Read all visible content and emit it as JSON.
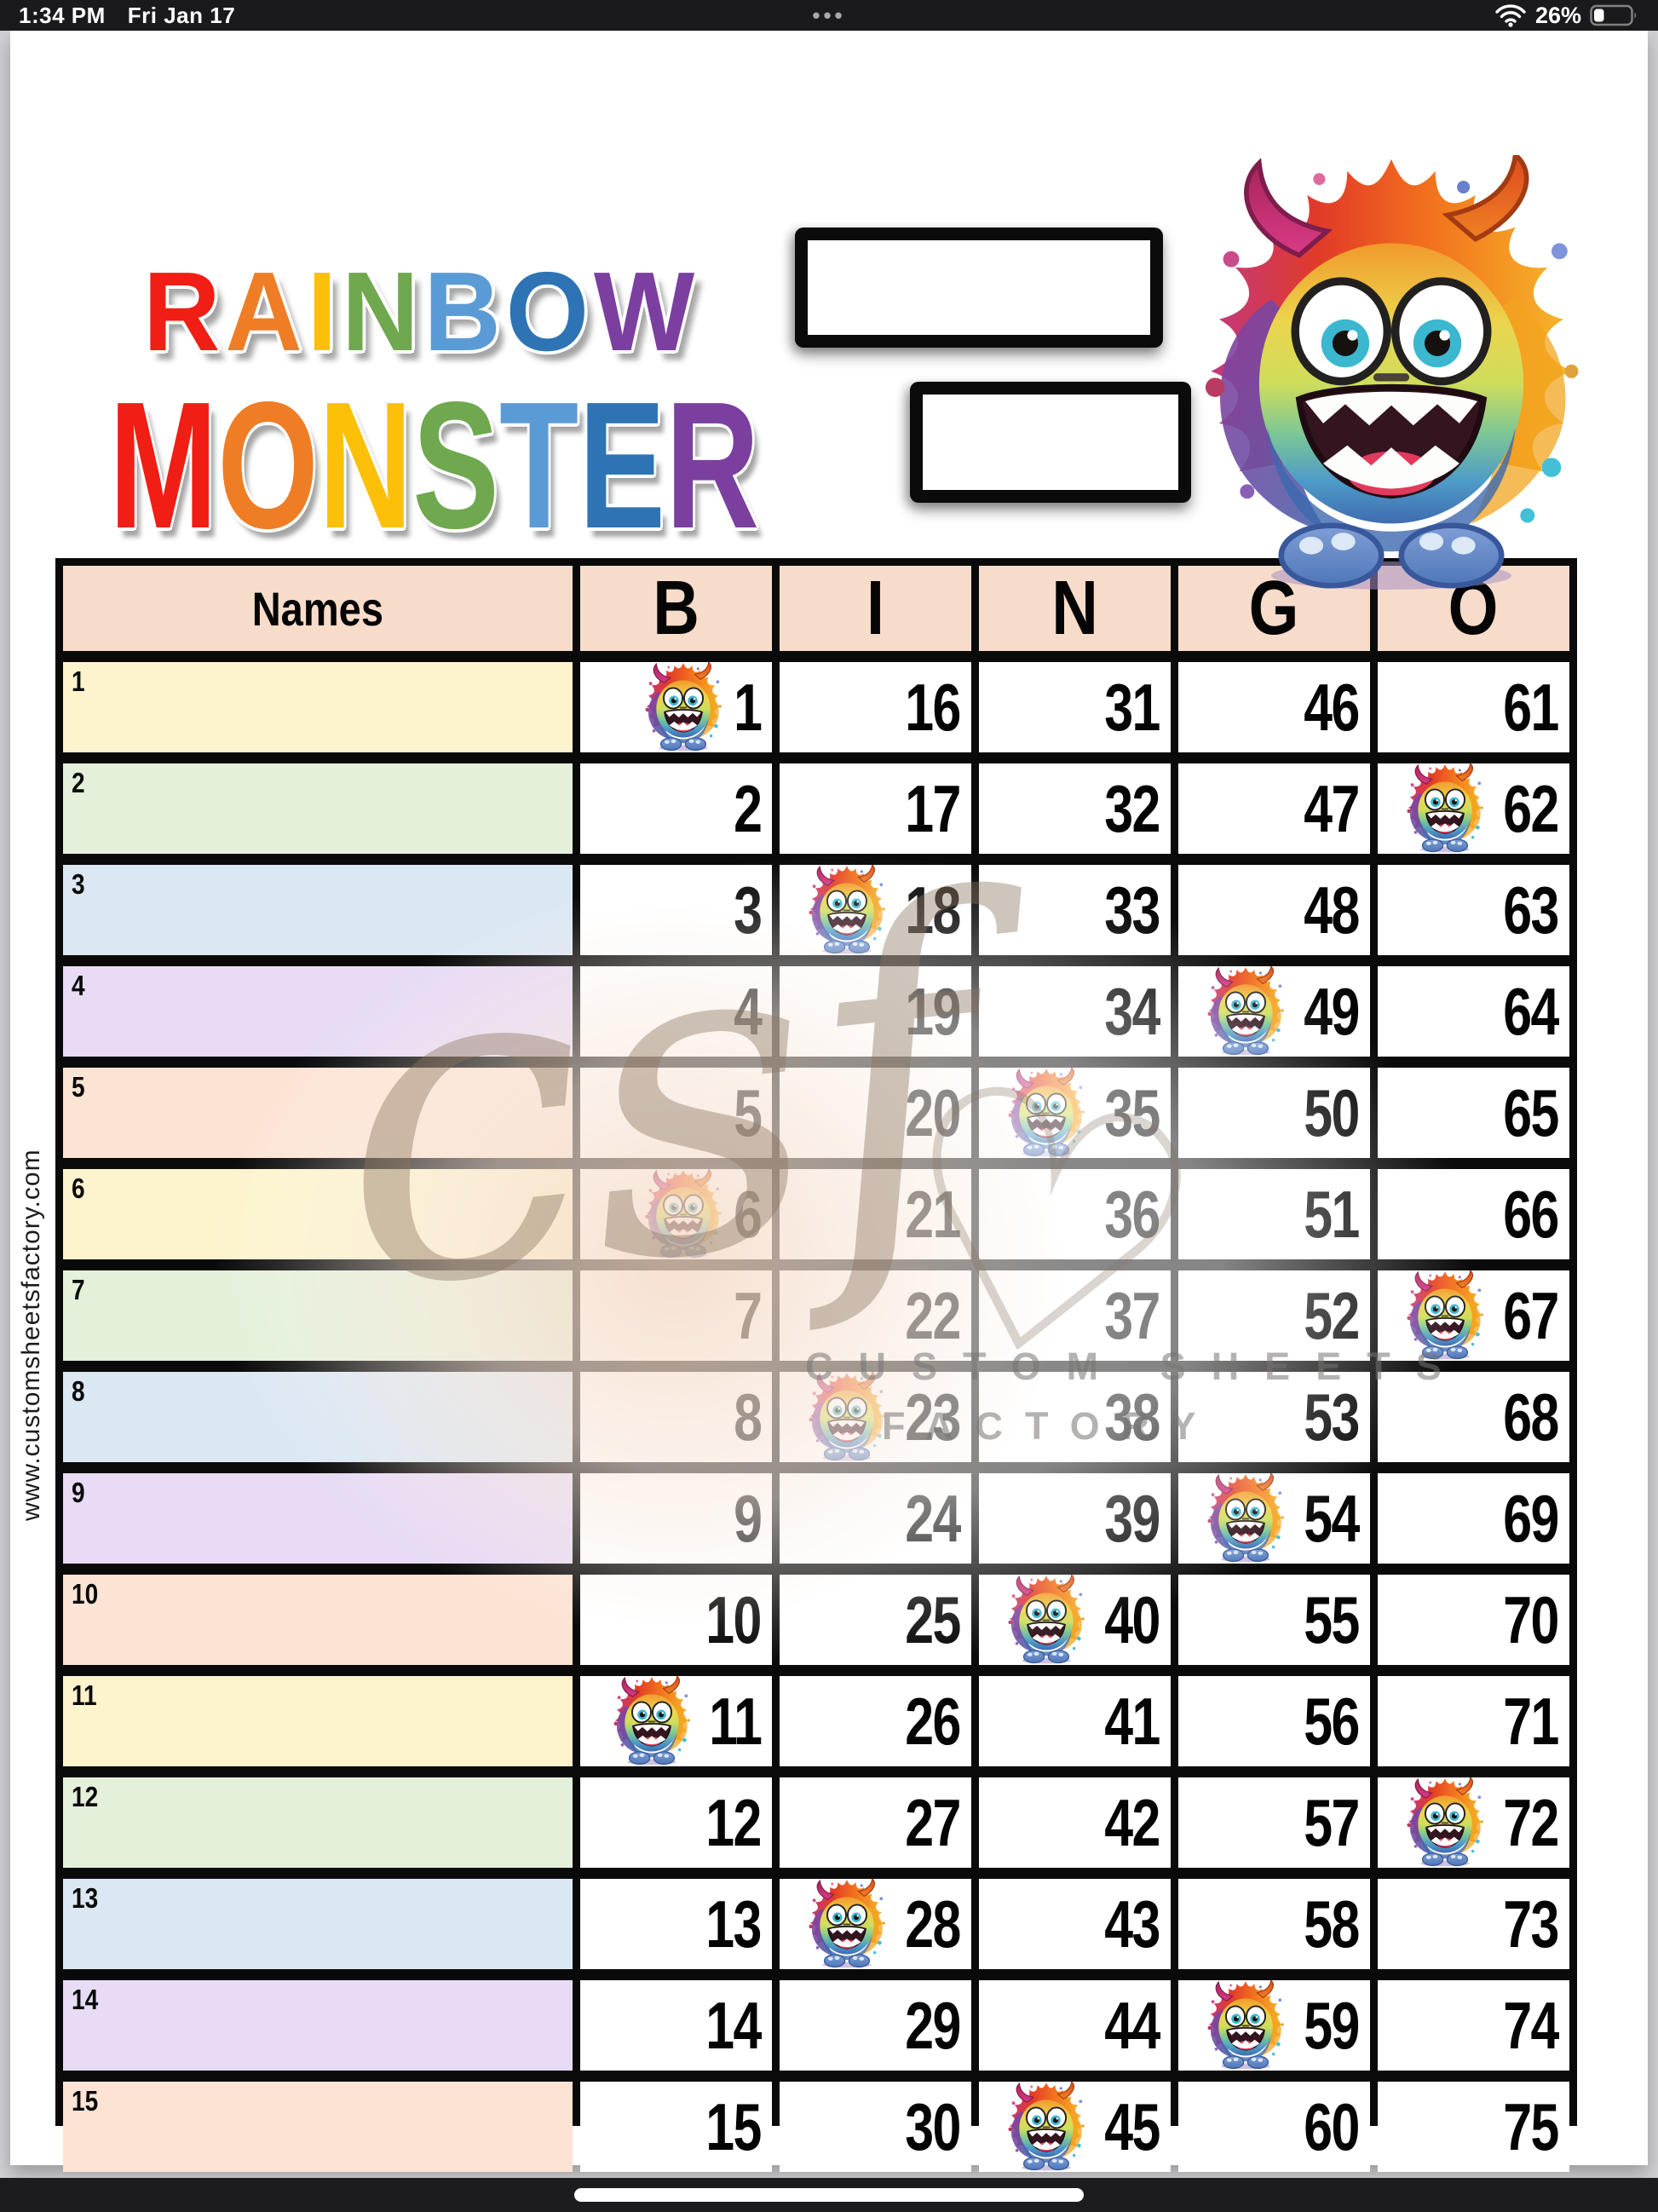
{
  "status_bar": {
    "time": "1:34 PM",
    "date": "Fri Jan 17",
    "menu_dots": "•••",
    "battery_percent": "26%"
  },
  "page": {
    "website_vertical_text": "www.customsheetsfactory.com"
  },
  "title": {
    "line1": [
      {
        "ch": "R",
        "color": "#f01e14"
      },
      {
        "ch": "A",
        "color": "#ef7d26"
      },
      {
        "ch": "I",
        "color": "#fdc008"
      },
      {
        "ch": "N",
        "color": "#6fa84f"
      },
      {
        "ch": "B",
        "color": "#5b9bd5"
      },
      {
        "ch": "O",
        "color": "#2e74b5"
      },
      {
        "ch": "W",
        "color": "#7b3fa0"
      }
    ],
    "line2": [
      {
        "ch": "M",
        "color": "#f01e14"
      },
      {
        "ch": "O",
        "color": "#ef7d26"
      },
      {
        "ch": "N",
        "color": "#fdc008"
      },
      {
        "ch": "S",
        "color": "#6fa84f"
      },
      {
        "ch": "T",
        "color": "#5b9bd5"
      },
      {
        "ch": "E",
        "color": "#2e74b5"
      },
      {
        "ch": "R",
        "color": "#7b3fa0"
      }
    ]
  },
  "header_boxes": {
    "box1_value": "",
    "box2_value": ""
  },
  "watermark": {
    "script_text": "csf",
    "heart": "♡",
    "line1": "CUSTOM SHEETS",
    "line2": "FACTORY"
  },
  "table": {
    "name_header": "Names",
    "bingo_headers": [
      "B",
      "I",
      "N",
      "G",
      "O"
    ],
    "header_bg": "#f8dcca",
    "row_colors": [
      "#fdf3cd",
      "#e4f0da",
      "#dbe7f3",
      "#e7dbf5",
      "#fce4d4"
    ],
    "rows": [
      {
        "num": "1",
        "name": "",
        "monster_col": 0,
        "values": [
          "1",
          "16",
          "31",
          "46",
          "61"
        ]
      },
      {
        "num": "2",
        "name": "",
        "monster_col": 4,
        "values": [
          "2",
          "17",
          "32",
          "47",
          "62"
        ]
      },
      {
        "num": "3",
        "name": "",
        "monster_col": 1,
        "values": [
          "3",
          "18",
          "33",
          "48",
          "63"
        ]
      },
      {
        "num": "4",
        "name": "",
        "monster_col": 3,
        "values": [
          "4",
          "19",
          "34",
          "49",
          "64"
        ]
      },
      {
        "num": "5",
        "name": "",
        "monster_col": 2,
        "values": [
          "5",
          "20",
          "35",
          "50",
          "65"
        ]
      },
      {
        "num": "6",
        "name": "",
        "monster_col": 0,
        "values": [
          "6",
          "21",
          "36",
          "51",
          "66"
        ]
      },
      {
        "num": "7",
        "name": "",
        "monster_col": 4,
        "values": [
          "7",
          "22",
          "37",
          "52",
          "67"
        ]
      },
      {
        "num": "8",
        "name": "",
        "monster_col": 1,
        "values": [
          "8",
          "23",
          "38",
          "53",
          "68"
        ]
      },
      {
        "num": "9",
        "name": "",
        "monster_col": 3,
        "values": [
          "9",
          "24",
          "39",
          "54",
          "69"
        ]
      },
      {
        "num": "10",
        "name": "",
        "monster_col": 2,
        "values": [
          "10",
          "25",
          "40",
          "55",
          "70"
        ]
      },
      {
        "num": "11",
        "name": "",
        "monster_col": 0,
        "values": [
          "11",
          "26",
          "41",
          "56",
          "71"
        ]
      },
      {
        "num": "12",
        "name": "",
        "monster_col": 4,
        "values": [
          "12",
          "27",
          "42",
          "57",
          "72"
        ]
      },
      {
        "num": "13",
        "name": "",
        "monster_col": 1,
        "values": [
          "13",
          "28",
          "43",
          "58",
          "73"
        ]
      },
      {
        "num": "14",
        "name": "",
        "monster_col": 3,
        "values": [
          "14",
          "29",
          "44",
          "59",
          "74"
        ]
      },
      {
        "num": "15",
        "name": "",
        "monster_col": 2,
        "values": [
          "15",
          "30",
          "45",
          "60",
          "75"
        ]
      }
    ]
  }
}
